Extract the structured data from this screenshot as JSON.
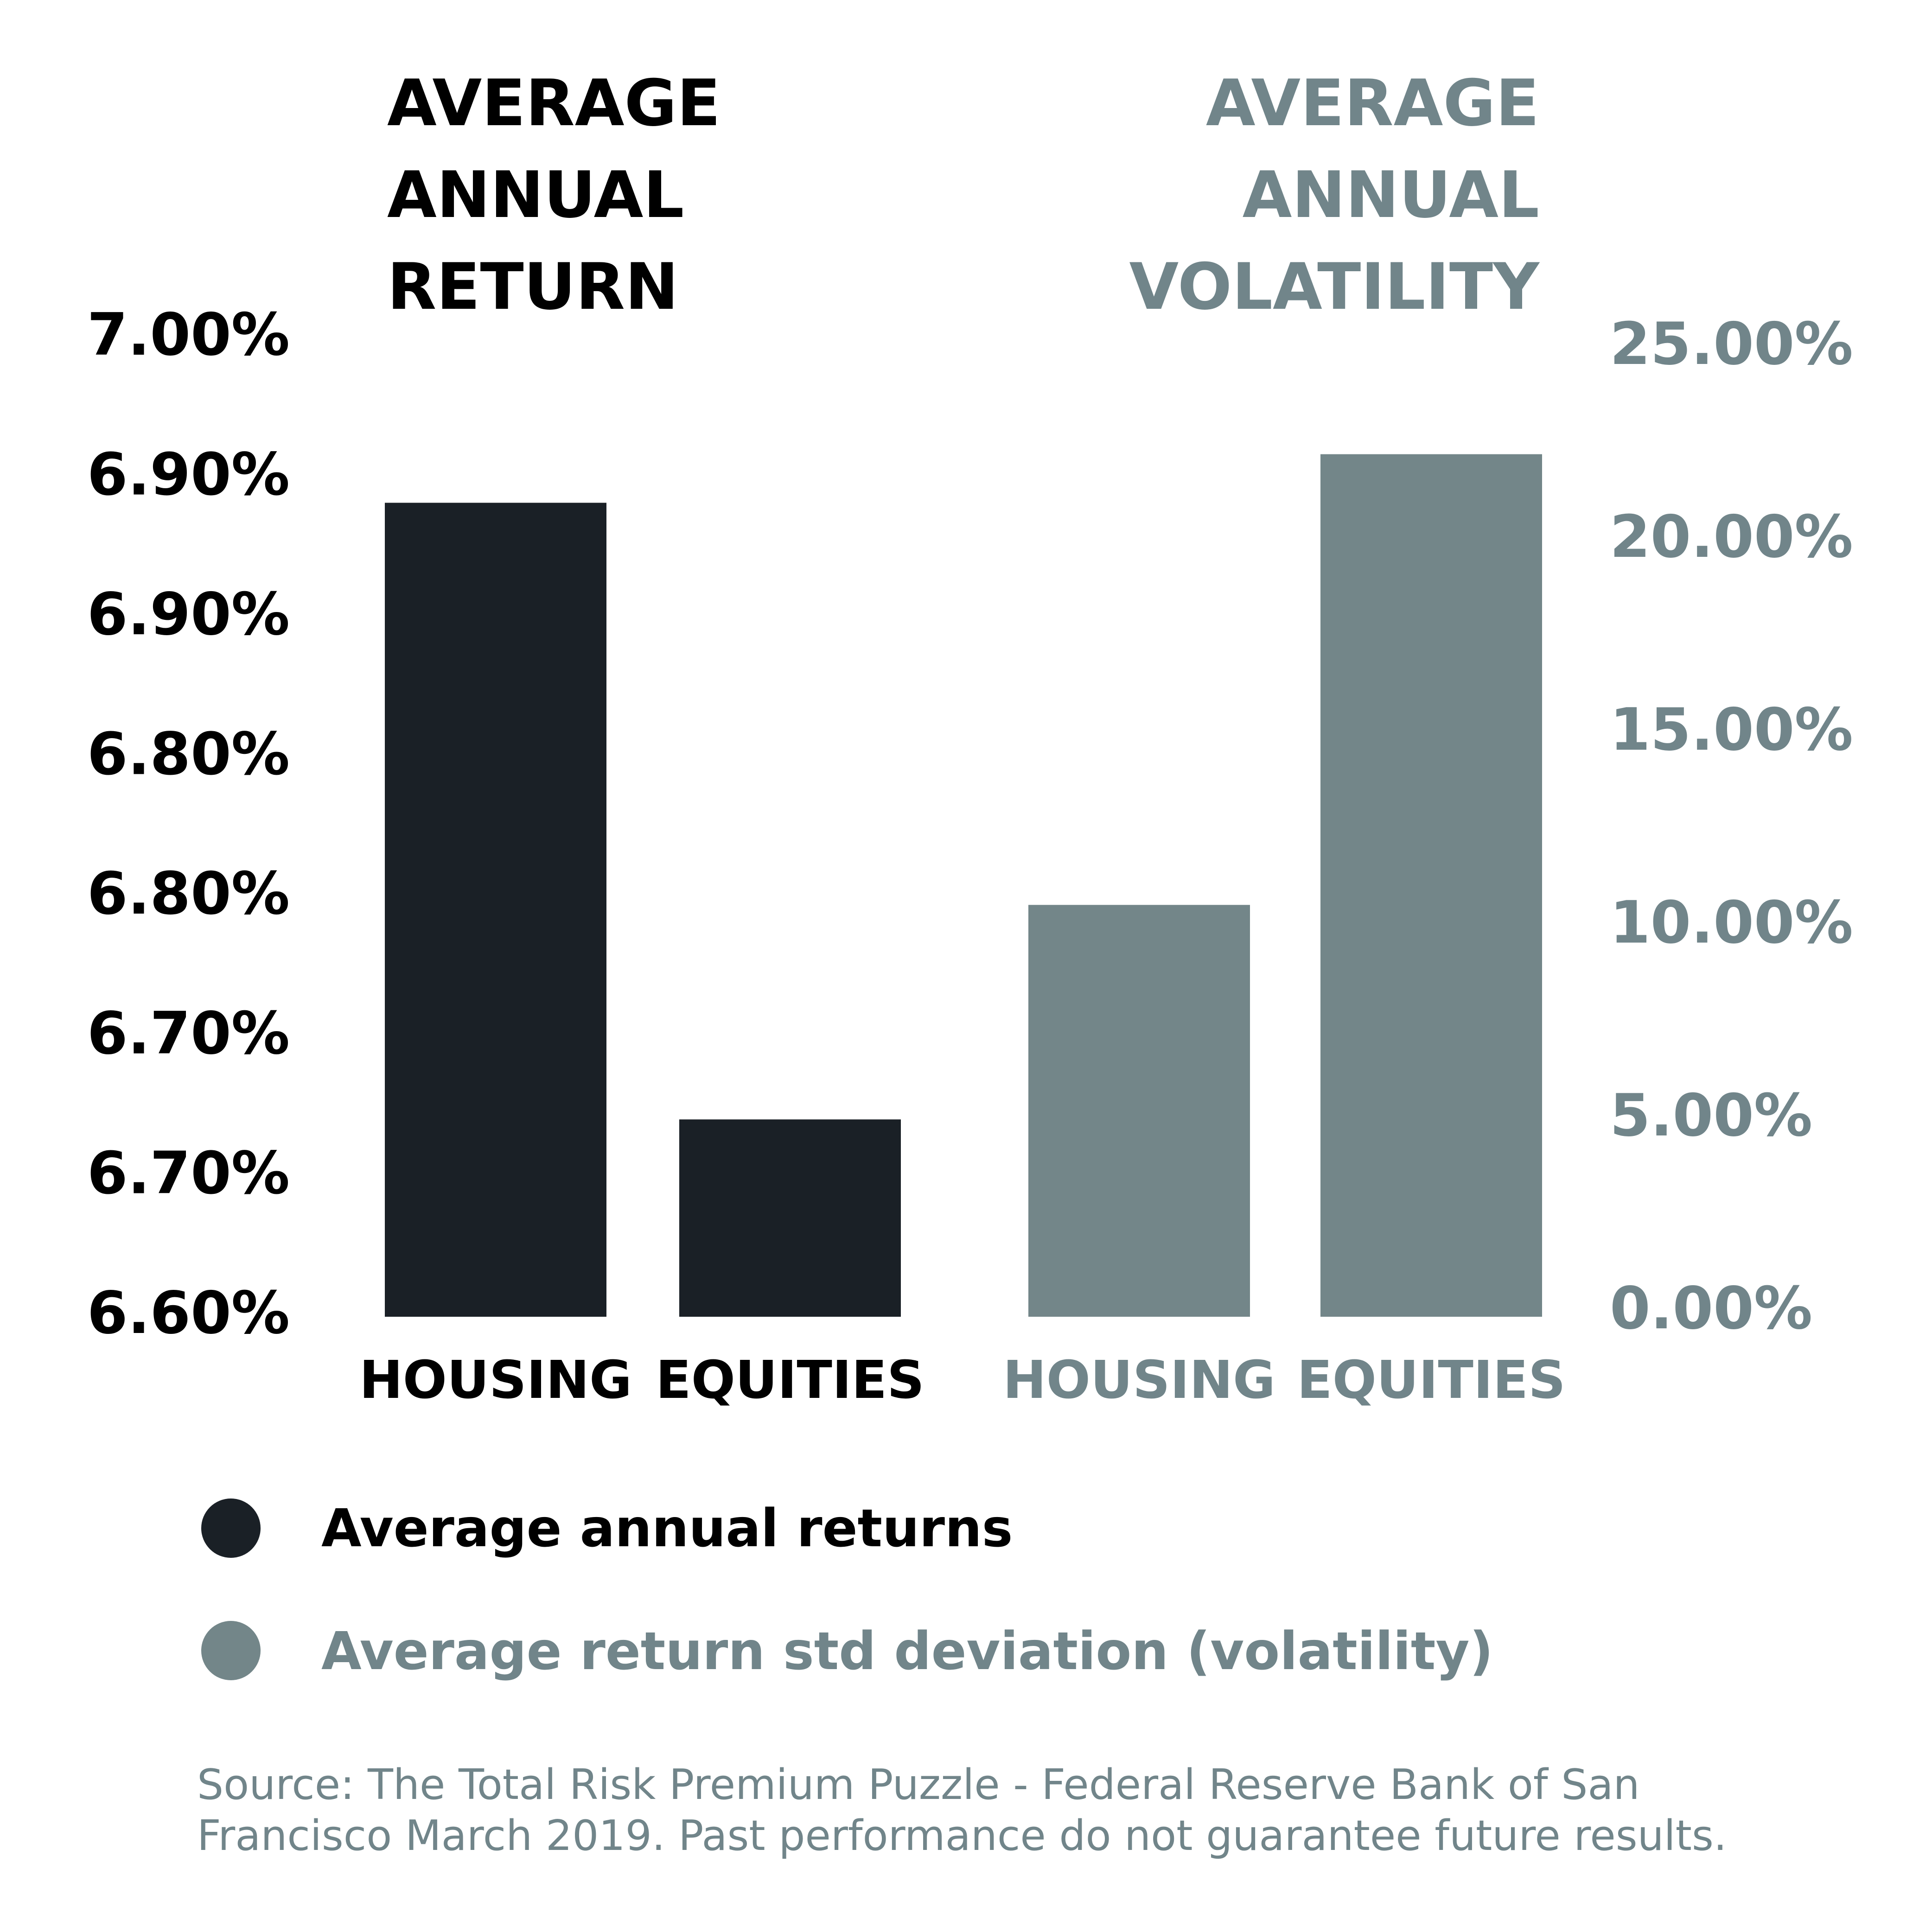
{
  "chart_data": [
    {
      "type": "bar",
      "title": [
        "AVERAGE",
        "ANNUAL",
        "RETURN"
      ],
      "categories": [
        "HOUSING",
        "EQUITIES"
      ],
      "series": [
        {
          "name": "Average annual returns",
          "values": [
            6.93,
            6.68
          ]
        }
      ],
      "ylim": [
        6.6,
        7.0
      ],
      "y_ticks": [
        "7.00%",
        "6.90%",
        "6.90%",
        "6.80%",
        "6.80%",
        "6.70%",
        "6.70%",
        "6.60%"
      ],
      "axis_side": "left",
      "color": "#1a2026"
    },
    {
      "type": "bar",
      "title": [
        "AVERAGE",
        "ANNUAL",
        "VOLATILITY"
      ],
      "categories": [
        "HOUSING",
        "EQUITIES"
      ],
      "series": [
        {
          "name": "Average return std deviation (volatility)",
          "values": [
            10.6,
            22.2
          ]
        }
      ],
      "ylim": [
        0,
        25
      ],
      "y_ticks": [
        "25.00%",
        "20.00%",
        "15.00%",
        "10.00%",
        "5.00%",
        "0.00%"
      ],
      "axis_side": "right",
      "color": "#738689"
    }
  ],
  "legend": [
    {
      "label": "Average annual returns",
      "color": "#1a2026"
    },
    {
      "label": "Average return std deviation (volatility)",
      "color": "#738689"
    }
  ],
  "source": [
    "Source: The Total Risk Premium Puzzle - Federal Reserve Bank of San",
    "Francisco March 2019. Past performance do not guarantee future results."
  ]
}
